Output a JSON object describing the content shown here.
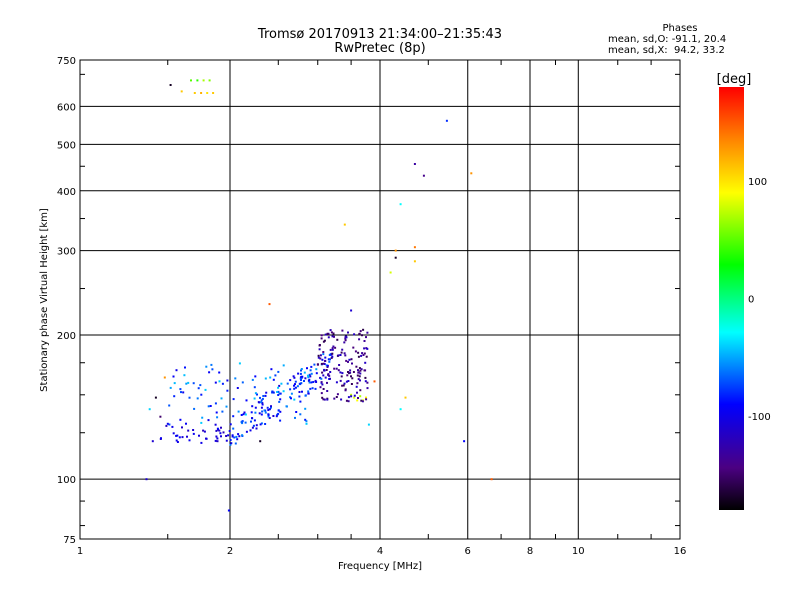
{
  "header": {
    "title_line1": "Tromsø 20170913 21:34:00–21:35:43",
    "title_line2": "RwPretec (8p)",
    "stats_title": "Phases",
    "stats_line1": "mean, sd,O: -91.1, 20.4",
    "stats_line2": "mean, sd,X:  94.2, 33.2"
  },
  "chart_data": {
    "type": "scatter",
    "xlabel": "Frequency [MHz]",
    "ylabel": "Stationary phase Virtual Height [km]",
    "xscale": "log",
    "yscale": "log",
    "xlim": [
      1,
      16
    ],
    "ylim": [
      75,
      750
    ],
    "xticks": [
      1,
      2,
      4,
      6,
      8,
      10,
      16
    ],
    "xtick_labels": [
      "1",
      "2",
      "4",
      "6",
      "8",
      "10",
      "16"
    ],
    "yticks": [
      75,
      100,
      200,
      300,
      400,
      500,
      600,
      750
    ],
    "ytick_labels": [
      "75",
      "100",
      "200",
      "300",
      "400",
      "500",
      "600",
      "750"
    ],
    "xgrid": [
      2,
      4,
      6,
      8,
      10
    ],
    "ygrid": [
      100,
      200,
      300,
      400,
      500,
      600
    ],
    "colorbar": {
      "label": "[deg]",
      "range": [
        -180,
        180
      ],
      "ticks": [
        100,
        0,
        -100
      ],
      "tick_labels": [
        "100",
        "0",
        "-100"
      ]
    },
    "points": [
      {
        "f": 1.36,
        "h": 100,
        "phase": -110
      },
      {
        "f": 1.99,
        "h": 86,
        "phase": -90
      },
      {
        "f": 1.52,
        "h": 665,
        "phase": -170
      },
      {
        "f": 1.6,
        "h": 645,
        "phase": 110
      },
      {
        "f": 1.67,
        "h": 680,
        "phase": 50
      },
      {
        "f": 1.72,
        "h": 680,
        "phase": 40
      },
      {
        "f": 1.77,
        "h": 680,
        "phase": 70
      },
      {
        "f": 1.82,
        "h": 680,
        "phase": 60
      },
      {
        "f": 1.7,
        "h": 640,
        "phase": 110
      },
      {
        "f": 1.75,
        "h": 640,
        "phase": 120
      },
      {
        "f": 1.8,
        "h": 640,
        "phase": 100
      },
      {
        "f": 1.85,
        "h": 640,
        "phase": 110
      },
      {
        "f": 5.45,
        "h": 560,
        "phase": -80
      },
      {
        "f": 4.7,
        "h": 455,
        "phase": -130
      },
      {
        "f": 4.9,
        "h": 430,
        "phase": -140
      },
      {
        "f": 6.1,
        "h": 435,
        "phase": 130
      },
      {
        "f": 4.4,
        "h": 375,
        "phase": -30
      },
      {
        "f": 3.4,
        "h": 340,
        "phase": 110
      },
      {
        "f": 4.3,
        "h": 300,
        "phase": 130
      },
      {
        "f": 4.7,
        "h": 305,
        "phase": 140
      },
      {
        "f": 4.3,
        "h": 290,
        "phase": -170
      },
      {
        "f": 4.7,
        "h": 285,
        "phase": 110
      },
      {
        "f": 4.2,
        "h": 270,
        "phase": 80
      },
      {
        "f": 2.4,
        "h": 232,
        "phase": 150
      },
      {
        "f": 3.5,
        "h": 225,
        "phase": -110
      },
      {
        "f": 3.7,
        "h": 205,
        "phase": -160
      },
      {
        "f": 3.9,
        "h": 160,
        "phase": 150
      },
      {
        "f": 4.5,
        "h": 148,
        "phase": 110
      },
      {
        "f": 4.4,
        "h": 140,
        "phase": -30
      },
      {
        "f": 3.8,
        "h": 130,
        "phase": -40
      },
      {
        "f": 5.9,
        "h": 120,
        "phase": -90
      },
      {
        "f": 6.7,
        "h": 100,
        "phase": 150
      },
      {
        "f": 1.48,
        "h": 163,
        "phase": 130
      },
      {
        "f": 1.42,
        "h": 148,
        "phase": -170
      },
      {
        "f": 1.38,
        "h": 140,
        "phase": -40
      },
      {
        "f": 1.4,
        "h": 120,
        "phase": -110
      },
      {
        "f": 1.45,
        "h": 135,
        "phase": -150
      },
      {
        "f": 2.3,
        "h": 120,
        "phase": -170
      },
      {
        "f": 3.55,
        "h": 148,
        "phase": 80
      },
      {
        "f": 3.6,
        "h": 146,
        "phase": 90
      },
      {
        "f": 3.65,
        "h": 149,
        "phase": 70
      },
      {
        "f": 3.7,
        "h": 146,
        "phase": 85
      },
      {
        "f": 3.75,
        "h": 148,
        "phase": 95
      },
      {
        "f": 3.5,
        "h": 150,
        "phase": 75
      }
    ],
    "point_clusters": [
      {
        "name": "O-trace-low",
        "f_range": [
          1.45,
          2.0
        ],
        "h_range": [
          118,
          130
        ],
        "phase_range": [
          -120,
          -90
        ],
        "count": 40
      },
      {
        "name": "O-trace-rise",
        "f_range": [
          2.0,
          3.2
        ],
        "h_range": [
          125,
          175
        ],
        "phase_range": [
          -110,
          -60
        ],
        "count": 150
      },
      {
        "name": "scatter-mid",
        "f_range": [
          1.5,
          3.0
        ],
        "h_range": [
          130,
          175
        ],
        "phase_range": [
          -100,
          -40
        ],
        "count": 100
      },
      {
        "name": "F-cusp",
        "f_range": [
          3.0,
          3.8
        ],
        "h_range": [
          145,
          205
        ],
        "phase_range": [
          -160,
          -110
        ],
        "count": 160
      }
    ]
  }
}
